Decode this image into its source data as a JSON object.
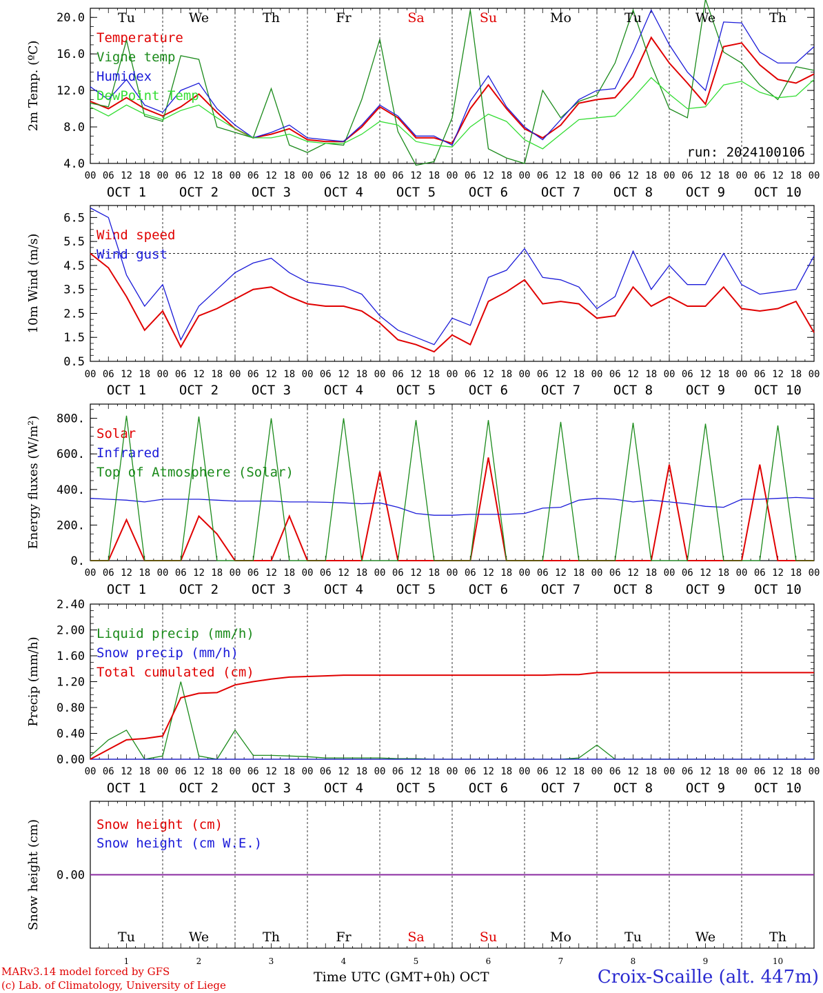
{
  "run_label": "run: 2024100106",
  "days": [
    "Tu",
    "We",
    "Th",
    "Fr",
    "Sa",
    "Su",
    "Mo",
    "Tu",
    "We",
    "Th"
  ],
  "weekend_indices": [
    4,
    5
  ],
  "day_numbers": [
    "1",
    "2",
    "3",
    "4",
    "5",
    "6",
    "7",
    "8",
    "9",
    "10"
  ],
  "date_labels": [
    "OCT  1",
    "OCT  2",
    "OCT  3",
    "OCT  4",
    "OCT  5",
    "OCT  6",
    "OCT  7",
    "OCT  8",
    "OCT  9",
    "OCT 10"
  ],
  "hour_labels": [
    "00",
    "06",
    "12",
    "18"
  ],
  "end_hour_label": "00",
  "footer": {
    "model": "MARv3.14 model forced by GFS",
    "copyright": "(c) Lab. of Climatology, University of Liege",
    "time_axis": "Time UTC (GMT+0h) OCT",
    "station": "Croix-Scaille (alt. 447m)"
  },
  "colors": {
    "red": "#e00000",
    "green": "#1a8a1a",
    "blue": "#1a1ad8",
    "lightgreen": "#33dd33",
    "purple": "#8a2aa0"
  },
  "chart_data": [
    {
      "id": "temp",
      "type": "line",
      "ylabel": "2m Temp. (ºC)",
      "ylim": [
        4.0,
        21.0
      ],
      "yticks": [
        4.0,
        8.0,
        12.0,
        16.0,
        20.0
      ],
      "ytick_labels": [
        "4.0",
        "8.0",
        "12.0",
        "16.0",
        "20.0"
      ],
      "x_hours": [
        0,
        6,
        12,
        18,
        24,
        30,
        36,
        42,
        48,
        54,
        60,
        66,
        72,
        78,
        84,
        90,
        96,
        102,
        108,
        114,
        120,
        126,
        132,
        138,
        144,
        150,
        156,
        162,
        168,
        174,
        180,
        186,
        192,
        198,
        204,
        210,
        216,
        222,
        228,
        234,
        240
      ],
      "series": [
        {
          "name": "Temperature",
          "color": "red",
          "values": [
            10.8,
            10.0,
            11.2,
            10.0,
            9.2,
            10.2,
            11.6,
            9.6,
            7.8,
            6.8,
            7.2,
            7.8,
            6.6,
            6.4,
            6.4,
            8.0,
            10.2,
            9.0,
            6.8,
            6.8,
            6.2,
            10.0,
            12.6,
            10.0,
            7.8,
            6.8,
            8.2,
            10.6,
            11.0,
            11.2,
            13.5,
            17.8,
            15.0,
            12.8,
            10.5,
            16.8,
            17.2,
            14.8,
            13.2,
            12.8,
            13.8
          ]
        },
        {
          "name": "Vigne temp",
          "color": "green",
          "values": [
            10.6,
            10.2,
            17.5,
            9.2,
            8.6,
            15.8,
            15.4,
            8.0,
            7.4,
            6.8,
            12.2,
            6.0,
            5.2,
            6.2,
            6.0,
            11.0,
            17.6,
            7.5,
            3.8,
            4.2,
            9.0,
            20.8,
            5.6,
            4.6,
            4.0,
            12.0,
            9.0,
            10.8,
            11.5,
            15.0,
            20.8,
            14.8,
            10.0,
            9.0,
            22.0,
            16.2,
            15.0,
            12.6,
            11.0,
            14.6,
            14.2
          ]
        },
        {
          "name": "Humidex",
          "color": "blue",
          "values": [
            12.4,
            11.0,
            13.2,
            10.4,
            9.6,
            12.0,
            12.8,
            10.0,
            8.2,
            6.8,
            7.4,
            8.2,
            6.8,
            6.6,
            6.4,
            8.2,
            10.4,
            9.2,
            7.0,
            7.0,
            6.0,
            10.8,
            13.6,
            10.2,
            8.0,
            6.6,
            8.8,
            11.0,
            12.0,
            12.2,
            16.2,
            20.8,
            17.0,
            14.0,
            12.0,
            19.5,
            19.4,
            16.2,
            15.0,
            15.0,
            16.8
          ]
        },
        {
          "name": "DewPoint Temp",
          "color": "lightgreen",
          "values": [
            10.2,
            9.2,
            10.4,
            9.4,
            8.8,
            9.8,
            10.4,
            9.0,
            7.8,
            6.8,
            6.8,
            7.2,
            6.4,
            6.2,
            6.2,
            7.2,
            8.6,
            8.2,
            6.4,
            6.0,
            5.8,
            8.0,
            9.4,
            8.6,
            6.6,
            5.6,
            7.2,
            8.8,
            9.0,
            9.2,
            11.2,
            13.4,
            11.6,
            10.0,
            10.2,
            12.6,
            13.0,
            11.8,
            11.2,
            11.4,
            13.2
          ]
        }
      ]
    },
    {
      "id": "wind",
      "type": "line",
      "ylabel": "10m Wind (m/s)",
      "ylim": [
        0.5,
        7.0
      ],
      "yticks": [
        0.5,
        1.5,
        2.5,
        3.5,
        4.5,
        5.5,
        6.5
      ],
      "ytick_labels": [
        "0.5",
        "1.5",
        "2.5",
        "3.5",
        "4.5",
        "5.5",
        "6.5"
      ],
      "reference_line": 5.0,
      "x_hours": [
        0,
        6,
        12,
        18,
        24,
        30,
        36,
        42,
        48,
        54,
        60,
        66,
        72,
        78,
        84,
        90,
        96,
        102,
        108,
        114,
        120,
        126,
        132,
        138,
        144,
        150,
        156,
        162,
        168,
        174,
        180,
        186,
        192,
        198,
        204,
        210,
        216,
        222,
        228,
        234,
        240
      ],
      "series": [
        {
          "name": "Wind speed",
          "color": "red",
          "values": [
            5.0,
            4.4,
            3.2,
            1.8,
            2.6,
            1.1,
            2.4,
            2.7,
            3.1,
            3.5,
            3.6,
            3.2,
            2.9,
            2.8,
            2.8,
            2.6,
            2.1,
            1.4,
            1.2,
            0.9,
            1.6,
            1.2,
            3.0,
            3.4,
            3.9,
            2.9,
            3.0,
            2.9,
            2.3,
            2.4,
            3.6,
            2.8,
            3.2,
            2.8,
            2.8,
            3.6,
            2.7,
            2.6,
            2.7,
            3.0,
            1.7
          ]
        },
        {
          "name": "Wind gust",
          "color": "blue",
          "values": [
            6.9,
            6.5,
            4.1,
            2.8,
            3.7,
            1.4,
            2.8,
            3.5,
            4.2,
            4.6,
            4.8,
            4.2,
            3.8,
            3.7,
            3.6,
            3.3,
            2.4,
            1.8,
            1.5,
            1.2,
            2.3,
            2.0,
            4.0,
            4.3,
            5.2,
            4.0,
            3.9,
            3.6,
            2.7,
            3.2,
            5.1,
            3.5,
            4.5,
            3.7,
            3.7,
            5.0,
            3.7,
            3.3,
            3.4,
            3.5,
            4.9
          ]
        }
      ]
    },
    {
      "id": "energy",
      "type": "line",
      "ylabel": "Energy fluxes (W/m²)",
      "ylim": [
        0,
        880
      ],
      "yticks": [
        0,
        200,
        400,
        600,
        800
      ],
      "ytick_labels": [
        "0.",
        "200.",
        "400.",
        "600.",
        "800."
      ],
      "x_hours": [
        0,
        6,
        12,
        18,
        24,
        30,
        36,
        42,
        48,
        54,
        60,
        66,
        72,
        78,
        84,
        90,
        96,
        102,
        108,
        114,
        120,
        126,
        132,
        138,
        144,
        150,
        156,
        162,
        168,
        174,
        180,
        186,
        192,
        198,
        204,
        210,
        216,
        222,
        228,
        234,
        240
      ],
      "series": [
        {
          "name": "Solar",
          "color": "red",
          "values": [
            0,
            0,
            230,
            0,
            0,
            0,
            250,
            150,
            0,
            0,
            0,
            250,
            0,
            0,
            0,
            0,
            500,
            0,
            0,
            0,
            0,
            0,
            580,
            0,
            0,
            0,
            0,
            0,
            0,
            0,
            0,
            0,
            540,
            0,
            0,
            0,
            0,
            540,
            0,
            0,
            0
          ]
        },
        {
          "name": "Infrared",
          "color": "blue",
          "values": [
            350,
            345,
            340,
            330,
            345,
            345,
            345,
            340,
            335,
            335,
            335,
            330,
            330,
            328,
            325,
            320,
            325,
            300,
            265,
            255,
            255,
            260,
            260,
            260,
            265,
            295,
            300,
            340,
            350,
            345,
            330,
            340,
            330,
            320,
            305,
            300,
            345,
            345,
            350,
            355,
            350
          ]
        },
        {
          "name": "Top of Atmosphere (Solar)",
          "color": "green",
          "values": [
            0,
            0,
            815,
            0,
            0,
            0,
            810,
            0,
            0,
            0,
            800,
            0,
            0,
            0,
            800,
            0,
            0,
            0,
            790,
            0,
            0,
            0,
            790,
            0,
            0,
            0,
            780,
            0,
            0,
            0,
            775,
            0,
            0,
            0,
            770,
            0,
            0,
            0,
            760,
            0,
            0
          ]
        }
      ]
    },
    {
      "id": "precip",
      "type": "line",
      "ylabel": "Precip (mm/h)",
      "ylim": [
        0.0,
        2.4
      ],
      "yticks": [
        0.0,
        0.4,
        0.8,
        1.2,
        1.6,
        2.0,
        2.4
      ],
      "ytick_labels": [
        "0.00",
        "0.40",
        "0.80",
        "1.20",
        "1.60",
        "2.00",
        "2.40"
      ],
      "x_hours": [
        0,
        6,
        12,
        18,
        24,
        30,
        36,
        42,
        48,
        54,
        60,
        66,
        72,
        78,
        84,
        90,
        96,
        102,
        108,
        114,
        120,
        126,
        132,
        138,
        144,
        150,
        156,
        162,
        168,
        174,
        180,
        186,
        192,
        198,
        204,
        210,
        216,
        222,
        228,
        234,
        240
      ],
      "series": [
        {
          "name": "Liquid precip (mm/h)",
          "color": "green",
          "values": [
            0.05,
            0.3,
            0.45,
            0.0,
            0.05,
            1.2,
            0.05,
            0.0,
            0.45,
            0.06,
            0.06,
            0.05,
            0.04,
            0.02,
            0.02,
            0.02,
            0.02,
            0.01,
            0.01,
            0.0,
            0.0,
            0.0,
            0.0,
            0.0,
            0.0,
            0.0,
            0.0,
            0.02,
            0.22,
            0.0,
            0.0,
            0.0,
            0.0,
            0.0,
            0.0,
            0.0,
            0.0,
            0.0,
            0.0,
            0.0,
            0.0
          ]
        },
        {
          "name": "Snow precip (mm/h)",
          "color": "blue",
          "values": [
            0,
            0,
            0,
            0,
            0,
            0,
            0,
            0,
            0,
            0,
            0,
            0,
            0,
            0,
            0,
            0,
            0,
            0,
            0,
            0,
            0,
            0,
            0,
            0,
            0,
            0,
            0,
            0,
            0,
            0,
            0,
            0,
            0,
            0,
            0,
            0,
            0,
            0,
            0,
            0,
            0
          ]
        },
        {
          "name": "Total cumulated (cm)",
          "color": "red",
          "values": [
            0.0,
            0.15,
            0.3,
            0.32,
            0.36,
            0.95,
            1.02,
            1.03,
            1.15,
            1.2,
            1.24,
            1.27,
            1.28,
            1.29,
            1.3,
            1.3,
            1.3,
            1.3,
            1.3,
            1.3,
            1.3,
            1.3,
            1.3,
            1.3,
            1.3,
            1.3,
            1.31,
            1.31,
            1.34,
            1.34,
            1.34,
            1.34,
            1.34,
            1.34,
            1.34,
            1.34,
            1.34,
            1.34,
            1.34,
            1.34,
            1.34
          ]
        }
      ]
    },
    {
      "id": "snow",
      "type": "line",
      "ylabel": "Snow height (cm)",
      "ylim": [
        -1.0,
        1.0
      ],
      "yticks": [
        0.0
      ],
      "ytick_labels": [
        "0.00"
      ],
      "x_hours": [
        0,
        240
      ],
      "series": [
        {
          "name": "Snow height (cm)",
          "color": "red",
          "values": [
            0.0,
            0.0
          ]
        },
        {
          "name": "Snow height (cm W.E.)",
          "color": "blue",
          "values": [
            0.0,
            0.0
          ]
        }
      ]
    }
  ]
}
